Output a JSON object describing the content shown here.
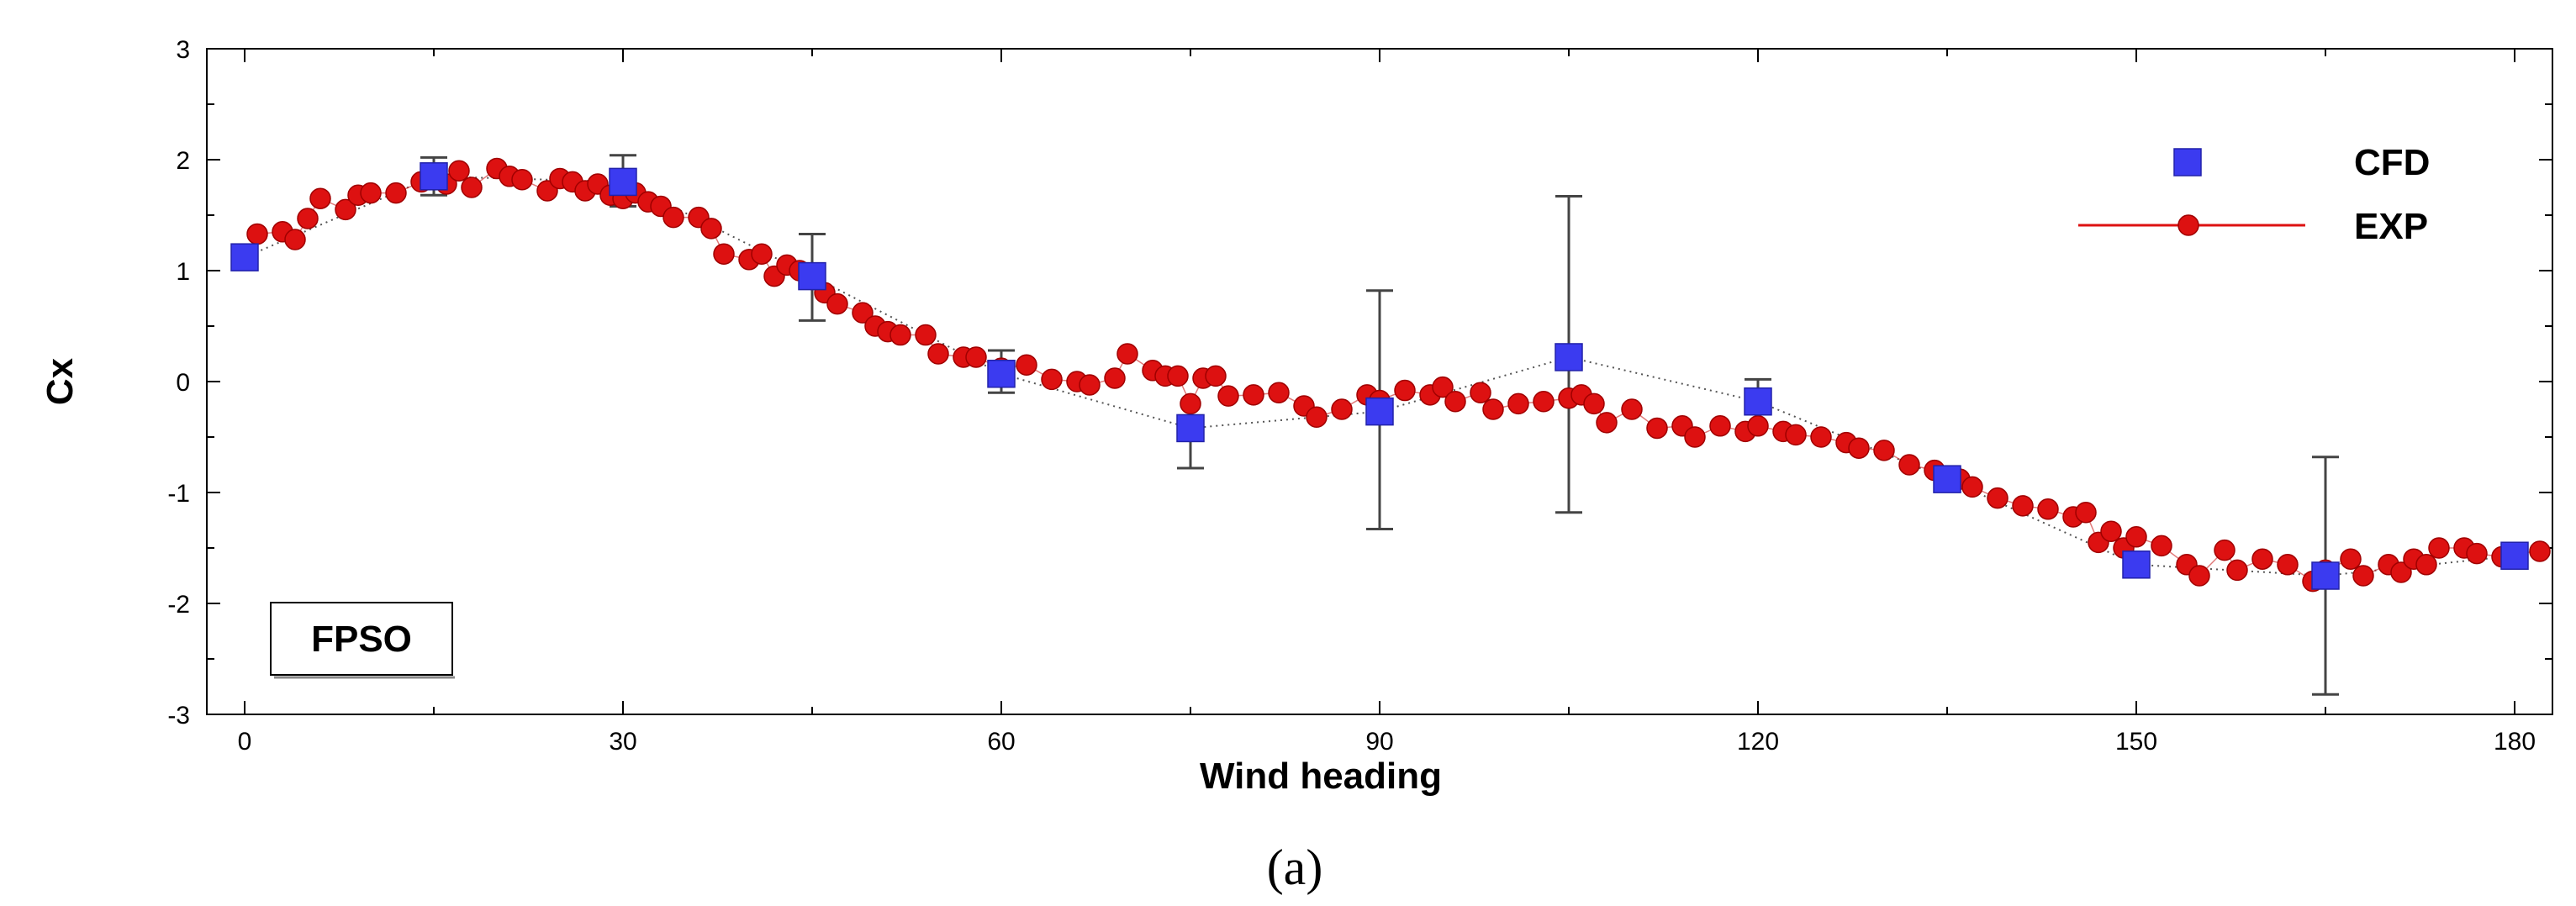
{
  "chart_data": {
    "type": "scatter",
    "title": "",
    "xlabel": "Wind heading",
    "ylabel": "Cx",
    "xlim": [
      -3,
      183
    ],
    "ylim": [
      -3,
      3
    ],
    "xticks": [
      0,
      30,
      60,
      90,
      120,
      150,
      180
    ],
    "yticks": [
      -3,
      -2,
      -1,
      0,
      1,
      2,
      3
    ],
    "xtick_labels": [
      "0",
      "30",
      "60",
      "90",
      "120",
      "150",
      "180"
    ],
    "ytick_labels": [
      "-3",
      "-2",
      "-1",
      "0",
      "1",
      "2",
      "3"
    ],
    "legend_position": "top-right",
    "annotation": "FPSO",
    "caption": "(a)",
    "series": [
      {
        "name": "CFD",
        "marker": "square",
        "color": "#3b3bf0",
        "connector": "dotted",
        "x": [
          0,
          15,
          30,
          45,
          60,
          75,
          90,
          105,
          120,
          135,
          150,
          165,
          180
        ],
        "y": [
          1.12,
          1.85,
          1.8,
          0.95,
          0.07,
          -0.42,
          -0.27,
          0.22,
          -0.18,
          -0.88,
          -1.65,
          -1.75,
          -1.57
        ],
        "err_low": [
          null,
          1.68,
          1.58,
          0.55,
          -0.1,
          -0.78,
          -1.33,
          -1.18,
          null,
          null,
          null,
          -2.82,
          null
        ],
        "err_high": [
          null,
          2.02,
          2.04,
          1.33,
          0.28,
          null,
          0.82,
          1.67,
          0.02,
          null,
          null,
          -0.68,
          null
        ]
      },
      {
        "name": "EXP",
        "marker": "circle",
        "color": "#dd1111",
        "connector": "solid",
        "x": [
          0,
          1,
          3,
          4,
          5,
          6,
          8,
          9,
          10,
          12,
          14,
          15,
          16,
          17,
          18,
          20,
          21,
          22,
          24,
          25,
          26,
          27,
          28,
          29,
          30,
          31,
          32,
          33,
          34,
          36,
          37,
          38,
          40,
          41,
          42,
          43,
          44,
          45,
          46,
          47,
          49,
          50,
          51,
          52,
          54,
          55,
          57,
          58,
          60,
          62,
          64,
          66,
          67,
          69,
          70,
          72,
          73,
          74,
          75,
          76,
          77,
          78,
          80,
          82,
          84,
          85,
          87,
          89,
          90,
          92,
          94,
          95,
          96,
          98,
          99,
          101,
          103,
          105,
          106,
          107,
          108,
          110,
          112,
          114,
          115,
          117,
          119,
          120,
          122,
          123,
          125,
          127,
          128,
          130,
          132,
          134,
          136,
          137,
          139,
          141,
          143,
          145,
          146,
          147,
          148,
          149,
          150,
          152,
          154,
          155,
          157,
          158,
          160,
          162,
          164,
          165,
          167,
          168,
          170,
          171,
          172,
          173,
          174,
          176,
          177,
          179,
          180,
          182
        ],
        "y": [
          1.12,
          1.33,
          1.35,
          1.28,
          1.47,
          1.65,
          1.55,
          1.68,
          1.7,
          1.7,
          1.8,
          1.85,
          1.78,
          1.9,
          1.75,
          1.92,
          1.85,
          1.82,
          1.72,
          1.83,
          1.8,
          1.72,
          1.78,
          1.68,
          1.65,
          1.7,
          1.62,
          1.58,
          1.48,
          1.48,
          1.38,
          1.15,
          1.1,
          1.15,
          0.95,
          1.05,
          1.0,
          0.92,
          0.8,
          0.7,
          0.62,
          0.5,
          0.45,
          0.42,
          0.42,
          0.25,
          0.22,
          0.22,
          0.12,
          0.15,
          0.02,
          0.0,
          -0.03,
          0.03,
          0.25,
          0.1,
          0.05,
          0.05,
          -0.2,
          0.03,
          0.05,
          -0.13,
          -0.12,
          -0.1,
          -0.22,
          -0.32,
          -0.25,
          -0.12,
          -0.17,
          -0.08,
          -0.12,
          -0.05,
          -0.18,
          -0.1,
          -0.25,
          -0.2,
          -0.18,
          -0.15,
          -0.12,
          -0.2,
          -0.37,
          -0.25,
          -0.42,
          -0.4,
          -0.5,
          -0.4,
          -0.45,
          -0.4,
          -0.45,
          -0.48,
          -0.5,
          -0.55,
          -0.6,
          -0.62,
          -0.75,
          -0.8,
          -0.88,
          -0.95,
          -1.05,
          -1.12,
          -1.15,
          -1.22,
          -1.18,
          -1.45,
          -1.35,
          -1.5,
          -1.4,
          -1.48,
          -1.65,
          -1.75,
          -1.52,
          -1.7,
          -1.6,
          -1.65,
          -1.8,
          -1.7,
          -1.6,
          -1.75,
          -1.65,
          -1.72,
          -1.6,
          -1.65,
          -1.5,
          -1.5,
          -1.55,
          -1.58,
          -1.55,
          -1.53
        ]
      }
    ]
  }
}
